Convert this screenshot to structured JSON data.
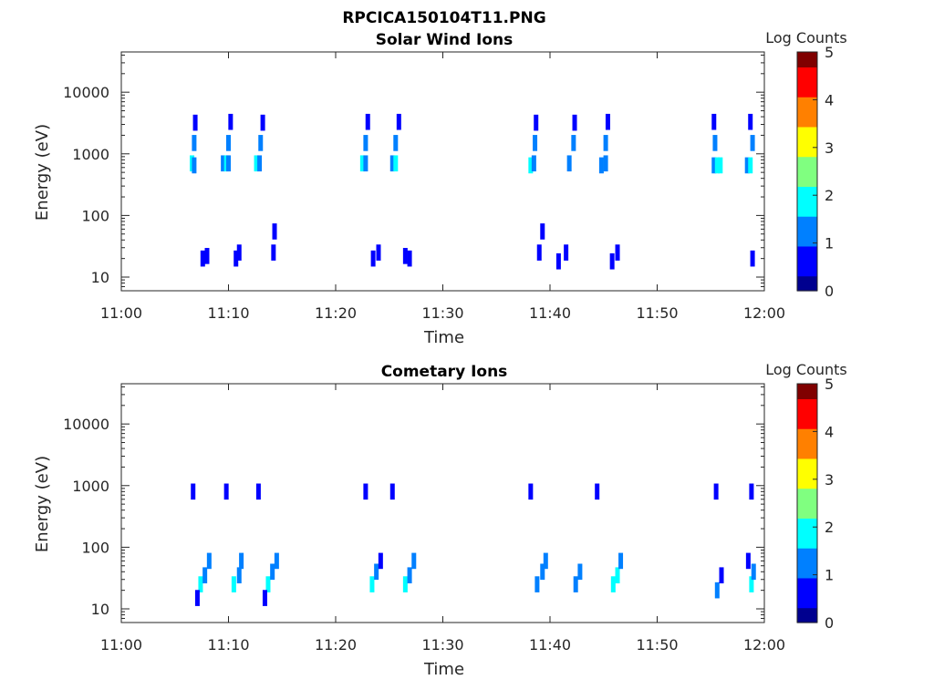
{
  "figure_title": "RPCICA150104T11.PNG",
  "colormap": [
    "#00008f",
    "#0000ff",
    "#0080ff",
    "#00ffff",
    "#80ff80",
    "#ffff00",
    "#ff8000",
    "#ff0000",
    "#800000"
  ],
  "chart_data": [
    {
      "type": "heatmap",
      "title": "Solar Wind Ions",
      "xlabel": "Time",
      "ylabel": "Energy (eV)",
      "x_ticks": [
        "11:00",
        "11:10",
        "11:20",
        "11:30",
        "11:40",
        "11:50",
        "12:00"
      ],
      "y_ticks": [
        "10",
        "100",
        "1000",
        "10000"
      ],
      "y_scale": "log",
      "ylim": [
        6,
        45000
      ],
      "xlim_minutes": [
        0,
        60
      ],
      "colorbar": {
        "label": "Log Counts",
        "ticks": [
          "0",
          "1",
          "2",
          "3",
          "4",
          "5"
        ],
        "range": [
          0,
          5
        ]
      },
      "cells": [
        {
          "t": 6.6,
          "e": 700,
          "v": 1.6
        },
        {
          "t": 6.8,
          "e": 650,
          "v": 1.3
        },
        {
          "t": 6.8,
          "e": 1500,
          "v": 1.5
        },
        {
          "t": 6.9,
          "e": 3200,
          "v": 0.7
        },
        {
          "t": 9.5,
          "e": 700,
          "v": 1.4
        },
        {
          "t": 9.8,
          "e": 700,
          "v": 1.8
        },
        {
          "t": 10.0,
          "e": 700,
          "v": 1.5
        },
        {
          "t": 10.0,
          "e": 1500,
          "v": 1.5
        },
        {
          "t": 10.2,
          "e": 3300,
          "v": 0.8
        },
        {
          "t": 12.6,
          "e": 700,
          "v": 1.7
        },
        {
          "t": 12.9,
          "e": 700,
          "v": 1.3
        },
        {
          "t": 13.0,
          "e": 1500,
          "v": 1.4
        },
        {
          "t": 13.2,
          "e": 3200,
          "v": 0.8
        },
        {
          "t": 22.5,
          "e": 700,
          "v": 1.6
        },
        {
          "t": 22.8,
          "e": 700,
          "v": 1.2
        },
        {
          "t": 22.8,
          "e": 1500,
          "v": 1.3
        },
        {
          "t": 23.0,
          "e": 3300,
          "v": 0.8
        },
        {
          "t": 25.3,
          "e": 700,
          "v": 1.5
        },
        {
          "t": 25.6,
          "e": 700,
          "v": 1.8
        },
        {
          "t": 25.6,
          "e": 1500,
          "v": 1.4
        },
        {
          "t": 25.9,
          "e": 3300,
          "v": 0.7
        },
        {
          "t": 38.2,
          "e": 650,
          "v": 1.6
        },
        {
          "t": 38.5,
          "e": 700,
          "v": 1.4
        },
        {
          "t": 38.6,
          "e": 1500,
          "v": 1.3
        },
        {
          "t": 38.7,
          "e": 3200,
          "v": 0.8
        },
        {
          "t": 41.8,
          "e": 700,
          "v": 1.0
        },
        {
          "t": 42.2,
          "e": 1500,
          "v": 1.2
        },
        {
          "t": 42.3,
          "e": 3200,
          "v": 0.7
        },
        {
          "t": 44.8,
          "e": 650,
          "v": 1.5
        },
        {
          "t": 45.2,
          "e": 700,
          "v": 1.4
        },
        {
          "t": 45.2,
          "e": 1500,
          "v": 1.3
        },
        {
          "t": 45.4,
          "e": 3300,
          "v": 0.7
        },
        {
          "t": 55.3,
          "e": 650,
          "v": 1.2
        },
        {
          "t": 55.6,
          "e": 650,
          "v": 2.0
        },
        {
          "t": 55.9,
          "e": 650,
          "v": 1.6
        },
        {
          "t": 55.4,
          "e": 1500,
          "v": 1.0
        },
        {
          "t": 55.3,
          "e": 3300,
          "v": 0.6
        },
        {
          "t": 58.4,
          "e": 650,
          "v": 1.4
        },
        {
          "t": 58.7,
          "e": 650,
          "v": 1.8
        },
        {
          "t": 58.9,
          "e": 1500,
          "v": 1.4
        },
        {
          "t": 58.7,
          "e": 3300,
          "v": 0.8
        },
        {
          "t": 7.6,
          "e": 20,
          "v": 0.6
        },
        {
          "t": 8.0,
          "e": 22,
          "v": 0.5
        },
        {
          "t": 10.7,
          "e": 20,
          "v": 0.6
        },
        {
          "t": 11.0,
          "e": 25,
          "v": 0.5
        },
        {
          "t": 14.2,
          "e": 25,
          "v": 0.6
        },
        {
          "t": 14.3,
          "e": 55,
          "v": 0.4
        },
        {
          "t": 23.5,
          "e": 20,
          "v": 0.6
        },
        {
          "t": 24.0,
          "e": 25,
          "v": 0.5
        },
        {
          "t": 26.5,
          "e": 22,
          "v": 0.6
        },
        {
          "t": 26.9,
          "e": 20,
          "v": 0.5
        },
        {
          "t": 39.0,
          "e": 25,
          "v": 0.6
        },
        {
          "t": 39.3,
          "e": 55,
          "v": 0.4
        },
        {
          "t": 40.8,
          "e": 18,
          "v": 0.5
        },
        {
          "t": 41.5,
          "e": 25,
          "v": 0.6
        },
        {
          "t": 45.8,
          "e": 18,
          "v": 0.5
        },
        {
          "t": 46.3,
          "e": 25,
          "v": 0.6
        },
        {
          "t": 58.9,
          "e": 20,
          "v": 0.6
        }
      ]
    },
    {
      "type": "heatmap",
      "title": "Cometary Ions",
      "xlabel": "Time",
      "ylabel": "Energy (eV)",
      "x_ticks": [
        "11:00",
        "11:10",
        "11:20",
        "11:30",
        "11:40",
        "11:50",
        "12:00"
      ],
      "y_ticks": [
        "10",
        "100",
        "1000",
        "10000"
      ],
      "y_scale": "log",
      "ylim": [
        6,
        45000
      ],
      "xlim_minutes": [
        0,
        60
      ],
      "colorbar": {
        "label": "Log Counts",
        "ticks": [
          "0",
          "1",
          "2",
          "3",
          "4",
          "5"
        ],
        "range": [
          0,
          5
        ]
      },
      "cells": [
        {
          "t": 6.7,
          "e": 800,
          "v": 0.6
        },
        {
          "t": 9.8,
          "e": 800,
          "v": 0.6
        },
        {
          "t": 12.8,
          "e": 800,
          "v": 0.7
        },
        {
          "t": 22.8,
          "e": 800,
          "v": 0.6
        },
        {
          "t": 25.3,
          "e": 800,
          "v": 0.6
        },
        {
          "t": 38.2,
          "e": 800,
          "v": 0.5
        },
        {
          "t": 44.4,
          "e": 800,
          "v": 0.6
        },
        {
          "t": 55.5,
          "e": 800,
          "v": 0.7
        },
        {
          "t": 58.8,
          "e": 800,
          "v": 0.7
        },
        {
          "t": 7.4,
          "e": 25,
          "v": 2.0
        },
        {
          "t": 7.8,
          "e": 35,
          "v": 1.4
        },
        {
          "t": 8.2,
          "e": 60,
          "v": 1.0
        },
        {
          "t": 7.1,
          "e": 15,
          "v": 0.8
        },
        {
          "t": 10.5,
          "e": 25,
          "v": 1.8
        },
        {
          "t": 11.0,
          "e": 35,
          "v": 1.5
        },
        {
          "t": 11.2,
          "e": 60,
          "v": 1.0
        },
        {
          "t": 13.7,
          "e": 25,
          "v": 1.7
        },
        {
          "t": 14.1,
          "e": 40,
          "v": 1.4
        },
        {
          "t": 14.5,
          "e": 60,
          "v": 1.0
        },
        {
          "t": 13.4,
          "e": 15,
          "v": 0.9
        },
        {
          "t": 23.4,
          "e": 25,
          "v": 1.6
        },
        {
          "t": 23.8,
          "e": 40,
          "v": 1.2
        },
        {
          "t": 24.2,
          "e": 60,
          "v": 0.9
        },
        {
          "t": 26.5,
          "e": 25,
          "v": 2.0
        },
        {
          "t": 26.9,
          "e": 35,
          "v": 1.5
        },
        {
          "t": 27.3,
          "e": 60,
          "v": 1.0
        },
        {
          "t": 38.8,
          "e": 25,
          "v": 1.5
        },
        {
          "t": 39.3,
          "e": 40,
          "v": 1.3
        },
        {
          "t": 39.6,
          "e": 60,
          "v": 1.0
        },
        {
          "t": 42.4,
          "e": 25,
          "v": 1.4
        },
        {
          "t": 42.8,
          "e": 40,
          "v": 1.0
        },
        {
          "t": 45.9,
          "e": 25,
          "v": 1.9
        },
        {
          "t": 46.3,
          "e": 35,
          "v": 1.6
        },
        {
          "t": 46.6,
          "e": 60,
          "v": 1.0
        },
        {
          "t": 55.6,
          "e": 20,
          "v": 1.2
        },
        {
          "t": 56.0,
          "e": 35,
          "v": 0.9
        },
        {
          "t": 58.8,
          "e": 25,
          "v": 1.8
        },
        {
          "t": 59.0,
          "e": 40,
          "v": 1.3
        },
        {
          "t": 58.5,
          "e": 60,
          "v": 0.9
        }
      ]
    }
  ]
}
